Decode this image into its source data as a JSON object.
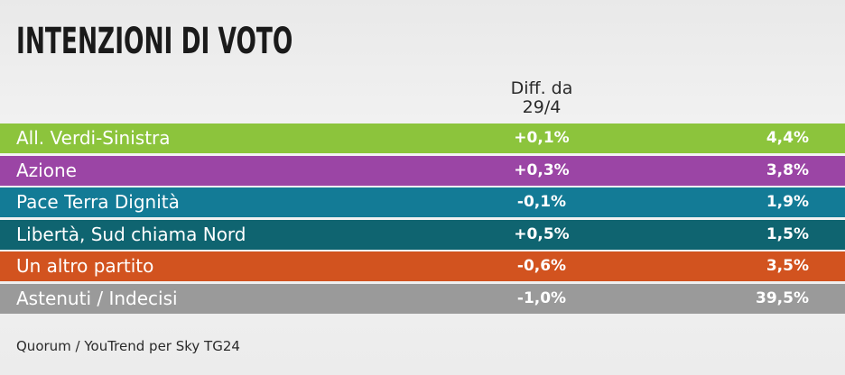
{
  "title": "INTENZIONI DI VOTO",
  "diff_header": [
    "Diff. da",
    "29/4"
  ],
  "source": "Quorum / YouTrend per Sky TG24",
  "chart_data": {
    "type": "table",
    "title": "INTENZIONI DI VOTO",
    "columns": [
      "",
      "Diff. da 29/4",
      ""
    ],
    "rows": [
      {
        "party": "All. Verdi-Sinistra",
        "diff": "+0,1%",
        "value": "4,4%",
        "color": "#8cc43c"
      },
      {
        "party": "Azione",
        "diff": "+0,3%",
        "value": "3,8%",
        "color": "#9b45a5"
      },
      {
        "party": "Pace Terra Dignità",
        "diff": "-0,1%",
        "value": "1,9%",
        "color": "#137b96"
      },
      {
        "party": "Libertà, Sud chiama Nord",
        "diff": "+0,5%",
        "value": "1,5%",
        "color": "#0f6470"
      },
      {
        "party": "Un altro partito",
        "diff": "-0,6%",
        "value": "3,5%",
        "color": "#d2531f"
      },
      {
        "party": "Astenuti / Indecisi",
        "diff": "-1,0%",
        "value": "39,5%",
        "color": "#9a9a9a"
      }
    ]
  }
}
